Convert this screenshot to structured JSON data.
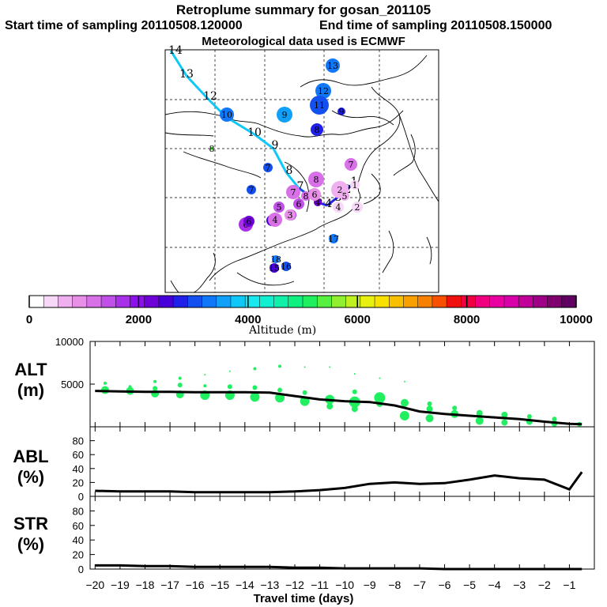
{
  "titles": {
    "main": "Retroplume summary for gosan_201105",
    "start": "Start time of sampling 20110508.120000",
    "end": "End time of sampling 20110508.150000",
    "met": "Meteorological data used is ECMWF"
  },
  "colorbar": {
    "label": "Altitude (m)",
    "ticks": [
      "0",
      "2000",
      "4000",
      "6000",
      "8000",
      "10000"
    ],
    "range": [
      0,
      10000
    ],
    "colors": [
      "#ffffff",
      "#f8d8f8",
      "#f0b0f0",
      "#e890e8",
      "#d870e8",
      "#c050e8",
      "#a830e8",
      "#8c10e8",
      "#6e00d8",
      "#4800d8",
      "#2020e8",
      "#1450f0",
      "#1078f8",
      "#10a0f8",
      "#10c8f8",
      "#18e8f0",
      "#10f0d0",
      "#10f0a8",
      "#10f080",
      "#20f060",
      "#58f040",
      "#90f030",
      "#c0f020",
      "#e8f010",
      "#f8e000",
      "#f8c000",
      "#f8a000",
      "#f88000",
      "#f85000",
      "#f01010",
      "#f00040",
      "#f00080",
      "#e800a0",
      "#d800a8",
      "#c00098",
      "#a00088",
      "#800070",
      "#600060"
    ]
  },
  "map": {
    "trajectory_labels": [
      "14",
      "13",
      "12",
      "11",
      "10",
      "9",
      "8",
      "7",
      "6",
      "5",
      "4",
      "3",
      "2",
      "1"
    ],
    "cluster_points": [
      {
        "label": "13",
        "alt": 3400,
        "size": 9
      },
      {
        "label": "12",
        "alt": 3300,
        "size": 10
      },
      {
        "label": "11",
        "alt": 3100,
        "size": 12
      },
      {
        "label": "10",
        "alt": 3200,
        "size": 9
      },
      {
        "label": "9",
        "alt": 3600,
        "size": 10
      },
      {
        "label": "9",
        "alt": 2700,
        "size": 5
      },
      {
        "label": "8",
        "alt": 2800,
        "size": 8
      },
      {
        "label": "8",
        "alt": 5500,
        "size": 2
      },
      {
        "label": "7",
        "alt": 2900,
        "size": 6
      },
      {
        "label": "6",
        "alt": 1600,
        "size": 9
      },
      {
        "label": "5",
        "alt": 2400,
        "size": 7
      },
      {
        "label": "4",
        "alt": 2300,
        "size": 5
      },
      {
        "label": "8",
        "alt": 1200,
        "size": 10
      },
      {
        "label": "7",
        "alt": 1300,
        "size": 9
      },
      {
        "label": "6",
        "alt": 1400,
        "size": 7
      },
      {
        "label": "5",
        "alt": 1500,
        "size": 7
      },
      {
        "label": "4",
        "alt": 1200,
        "size": 9
      },
      {
        "label": "3",
        "alt": 1600,
        "size": 7
      },
      {
        "label": "2",
        "alt": 700,
        "size": 11
      },
      {
        "label": "1",
        "alt": 400,
        "size": 6
      },
      {
        "label": "4",
        "alt": 500,
        "size": 7
      },
      {
        "label": "2",
        "alt": 450,
        "size": 7
      },
      {
        "label": "5",
        "alt": 600,
        "size": 6
      },
      {
        "label": "17",
        "alt": 3400,
        "size": 6
      },
      {
        "label": "18",
        "alt": 3300,
        "size": 5
      },
      {
        "label": "15",
        "alt": 2600,
        "size": 6
      },
      {
        "label": "16",
        "alt": 3000,
        "size": 6
      },
      {
        "label": "7",
        "alt": 3000,
        "size": 6
      },
      {
        "label": "6",
        "alt": 2200,
        "size": 7
      },
      {
        "label": "7",
        "alt": 1300,
        "size": 8
      },
      {
        "label": "8",
        "alt": 1100,
        "size": 6
      },
      {
        "label": "6",
        "alt": 900,
        "size": 8
      },
      {
        "label": "3",
        "alt": 800,
        "size": 7
      }
    ]
  },
  "chart_data": [
    {
      "type": "scatter+line",
      "title": "ALT",
      "ylabel": "ALT (m)",
      "label_line1": "ALT",
      "label_line2": "(m)",
      "xlim": [
        -20,
        0
      ],
      "ylim": [
        0,
        10000
      ],
      "yticks": [
        "10000",
        "5000"
      ],
      "mean_line": {
        "x": [
          -20,
          -19,
          -18,
          -17,
          -16,
          -15,
          -14,
          -13,
          -12,
          -11,
          -10,
          -9,
          -8,
          -7,
          -6,
          -5,
          -4,
          -3,
          -2,
          -1,
          -0.5
        ],
        "y": [
          4200,
          4150,
          4100,
          4100,
          4050,
          4050,
          4050,
          4000,
          3600,
          3200,
          3000,
          2900,
          2500,
          1800,
          1500,
          1300,
          1100,
          900,
          600,
          350,
          300
        ]
      },
      "scatter": [
        {
          "x": -19.6,
          "y": 4300,
          "r": 5
        },
        {
          "x": -19.6,
          "y": 5100,
          "r": 2
        },
        {
          "x": -18.6,
          "y": 4200,
          "r": 5
        },
        {
          "x": -18.6,
          "y": 4700,
          "r": 2
        },
        {
          "x": -17.6,
          "y": 3900,
          "r": 5
        },
        {
          "x": -17.6,
          "y": 4500,
          "r": 3
        },
        {
          "x": -17.6,
          "y": 5300,
          "r": 2
        },
        {
          "x": -16.6,
          "y": 3800,
          "r": 5
        },
        {
          "x": -16.6,
          "y": 4900,
          "r": 3
        },
        {
          "x": -16.6,
          "y": 5700,
          "r": 2
        },
        {
          "x": -15.6,
          "y": 3700,
          "r": 6
        },
        {
          "x": -15.6,
          "y": 4800,
          "r": 2
        },
        {
          "x": -15.6,
          "y": 6100,
          "r": 1
        },
        {
          "x": -14.6,
          "y": 3700,
          "r": 6
        },
        {
          "x": -14.6,
          "y": 4700,
          "r": 3
        },
        {
          "x": -14.6,
          "y": 6500,
          "r": 1
        },
        {
          "x": -13.6,
          "y": 3500,
          "r": 6
        },
        {
          "x": -13.6,
          "y": 4600,
          "r": 3
        },
        {
          "x": -13.6,
          "y": 6800,
          "r": 2
        },
        {
          "x": -12.6,
          "y": 3400,
          "r": 6
        },
        {
          "x": -12.6,
          "y": 4300,
          "r": 3
        },
        {
          "x": -12.6,
          "y": 7100,
          "r": 2
        },
        {
          "x": -11.6,
          "y": 3000,
          "r": 6
        },
        {
          "x": -11.6,
          "y": 4000,
          "r": 3
        },
        {
          "x": -11.6,
          "y": 7000,
          "r": 1
        },
        {
          "x": -10.6,
          "y": 3200,
          "r": 6
        },
        {
          "x": -10.6,
          "y": 2400,
          "r": 4
        },
        {
          "x": -10.6,
          "y": 7000,
          "r": 1
        },
        {
          "x": -9.6,
          "y": 2900,
          "r": 7
        },
        {
          "x": -9.6,
          "y": 2100,
          "r": 4
        },
        {
          "x": -9.6,
          "y": 4100,
          "r": 3
        },
        {
          "x": -9.6,
          "y": 6200,
          "r": 1
        },
        {
          "x": -8.6,
          "y": 3400,
          "r": 7
        },
        {
          "x": -8.6,
          "y": 2700,
          "r": 4
        },
        {
          "x": -8.6,
          "y": 5700,
          "r": 1
        },
        {
          "x": -7.6,
          "y": 1300,
          "r": 6
        },
        {
          "x": -7.6,
          "y": 2800,
          "r": 5
        },
        {
          "x": -7.6,
          "y": 5300,
          "r": 1
        },
        {
          "x": -6.6,
          "y": 1000,
          "r": 5
        },
        {
          "x": -6.6,
          "y": 2100,
          "r": 4
        },
        {
          "x": -6.6,
          "y": 2700,
          "r": 3
        },
        {
          "x": -5.6,
          "y": 1500,
          "r": 5
        },
        {
          "x": -5.6,
          "y": 2200,
          "r": 3
        },
        {
          "x": -4.6,
          "y": 700,
          "r": 5
        },
        {
          "x": -4.6,
          "y": 1600,
          "r": 4
        },
        {
          "x": -3.6,
          "y": 500,
          "r": 4
        },
        {
          "x": -3.6,
          "y": 1400,
          "r": 4
        },
        {
          "x": -2.6,
          "y": 600,
          "r": 4
        },
        {
          "x": -2.6,
          "y": 1200,
          "r": 3
        },
        {
          "x": -1.6,
          "y": 400,
          "r": 4
        },
        {
          "x": -1.6,
          "y": 900,
          "r": 3
        },
        {
          "x": -0.6,
          "y": 300,
          "r": 3
        }
      ]
    },
    {
      "type": "line",
      "title": "ABL",
      "ylabel": "ABL (%)",
      "label_line1": "ABL",
      "label_line2": "(%)",
      "xlim": [
        -20,
        0
      ],
      "ylim": [
        0,
        100
      ],
      "yticks": [
        "80",
        "60",
        "40",
        "20",
        "0"
      ],
      "x": [
        -20,
        -19,
        -18,
        -17,
        -16,
        -15,
        -14,
        -13,
        -12,
        -11,
        -10,
        -9,
        -8,
        -7,
        -6,
        -5,
        -4,
        -3,
        -2,
        -1,
        -0.5
      ],
      "y": [
        8,
        7,
        7,
        7,
        6,
        6,
        6,
        6,
        7,
        9,
        12,
        18,
        20,
        18,
        19,
        24,
        30,
        26,
        24,
        10,
        35
      ]
    },
    {
      "type": "line",
      "title": "STR",
      "ylabel": "STR (%)",
      "label_line1": "STR",
      "label_line2": "(%)",
      "xlim": [
        -20,
        0
      ],
      "ylim": [
        0,
        100
      ],
      "yticks": [
        "80",
        "60",
        "40",
        "20",
        "0"
      ],
      "x": [
        -20,
        -19,
        -18,
        -17,
        -16,
        -15,
        -14,
        -13,
        -12,
        -11,
        -10,
        -9,
        -8,
        -7,
        -6,
        -5,
        -4,
        -3,
        -2,
        -1,
        -0.5
      ],
      "y": [
        5,
        5,
        4,
        4,
        3,
        3,
        3,
        3,
        2,
        2,
        1,
        1,
        1,
        1,
        0,
        0,
        0,
        0,
        0,
        0,
        0
      ]
    }
  ],
  "xaxis": {
    "label": "Travel time (days)",
    "ticks": [
      "−20",
      "−19",
      "−18",
      "−17",
      "−16",
      "−15",
      "−14",
      "−13",
      "−12",
      "−11",
      "−10",
      "−9",
      "−8",
      "−7",
      "−6",
      "−5",
      "−4",
      "−3",
      "−2",
      "−1"
    ]
  }
}
